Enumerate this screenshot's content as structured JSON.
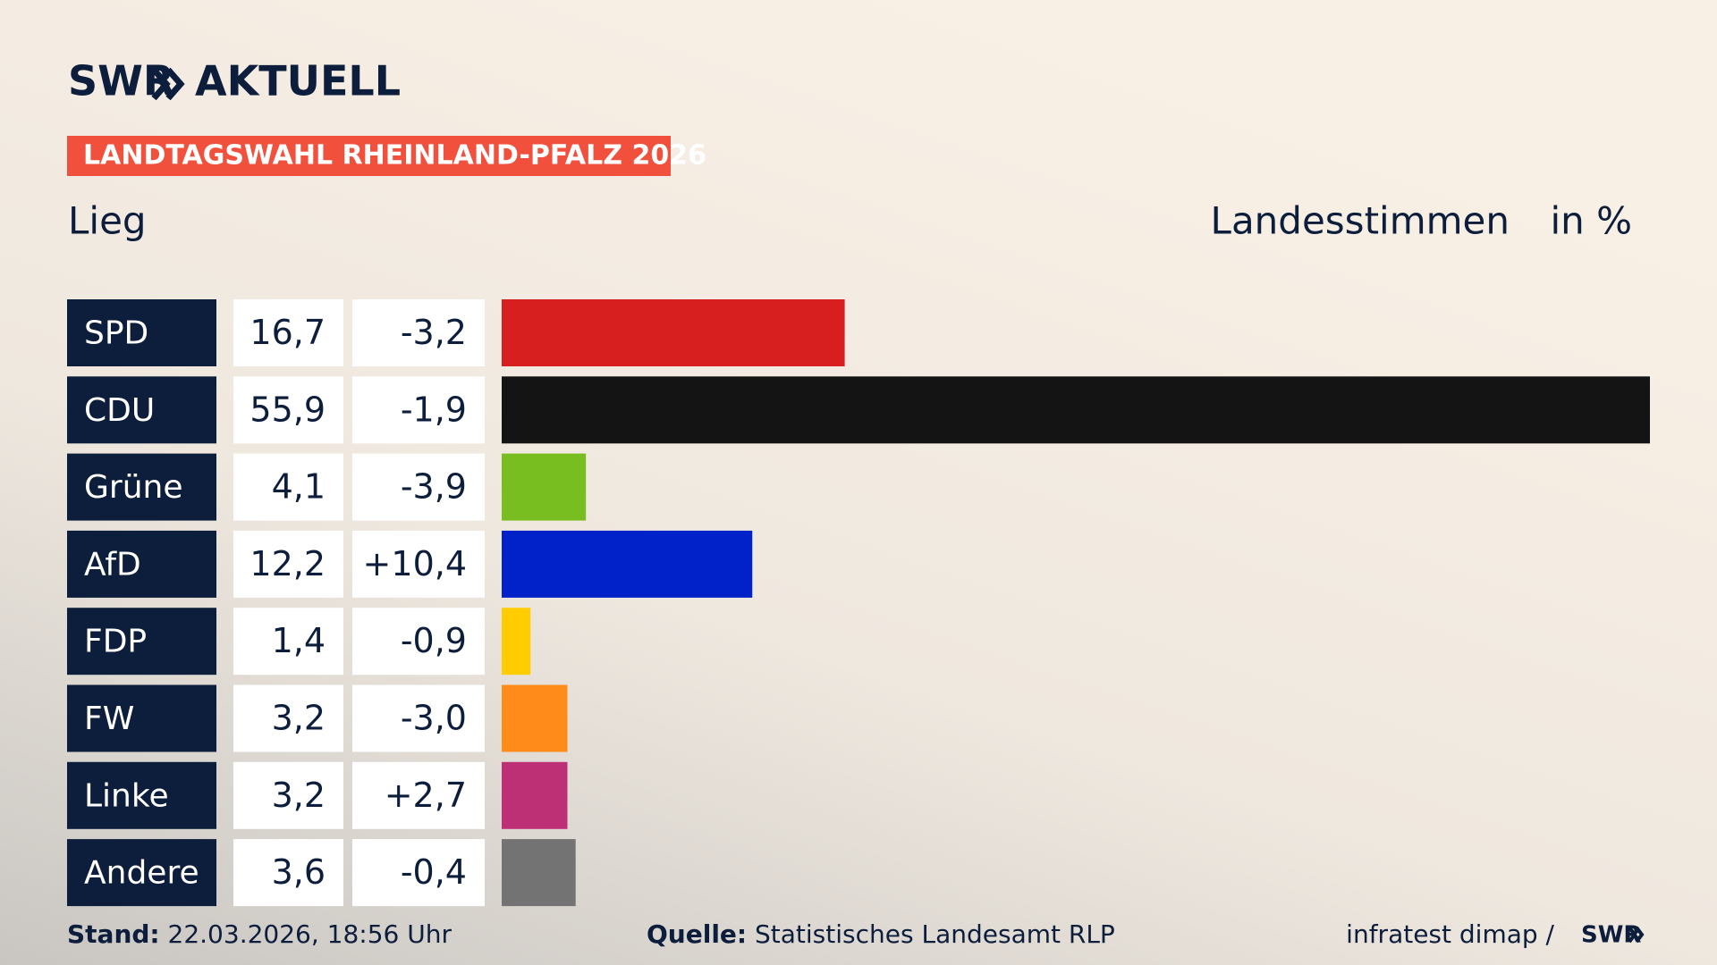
{
  "header": {
    "logo_left": "SWR",
    "logo_right": "AKTUELL",
    "banner": "LANDTAGSWAHL RHEINLAND-PFALZ 2026",
    "subtitle": "Lieg",
    "measure": "Landesstimmen",
    "unit": "in %"
  },
  "chart_data": {
    "type": "bar",
    "categories": [
      "SPD",
      "CDU",
      "Grüne",
      "AfD",
      "FDP",
      "FW",
      "Linke",
      "Andere"
    ],
    "values": [
      16.7,
      55.9,
      4.1,
      12.2,
      1.4,
      3.2,
      3.2,
      3.6
    ],
    "value_labels": [
      "16,7",
      "55,9",
      "4,1",
      "12,2",
      "1,4",
      "3,2",
      "3,2",
      "3,6"
    ],
    "changes": [
      "-3,2",
      "-1,9",
      "-3,9",
      "+10,4",
      "-0,9",
      "-3,0",
      "+2,7",
      "-0,4"
    ],
    "colors": [
      "#d71f1f",
      "#141414",
      "#78be20",
      "#0022c8",
      "#ffcc00",
      "#ff8c1a",
      "#be3075",
      "#737373"
    ]
  },
  "footer": {
    "stand_label": "Stand:",
    "stand": "22.03.2026, 18:56 Uhr",
    "source_label": "Quelle:",
    "source": "Statistisches Landesamt RLP",
    "credit": "infratest dimap /",
    "credit_logo": "SWR"
  }
}
